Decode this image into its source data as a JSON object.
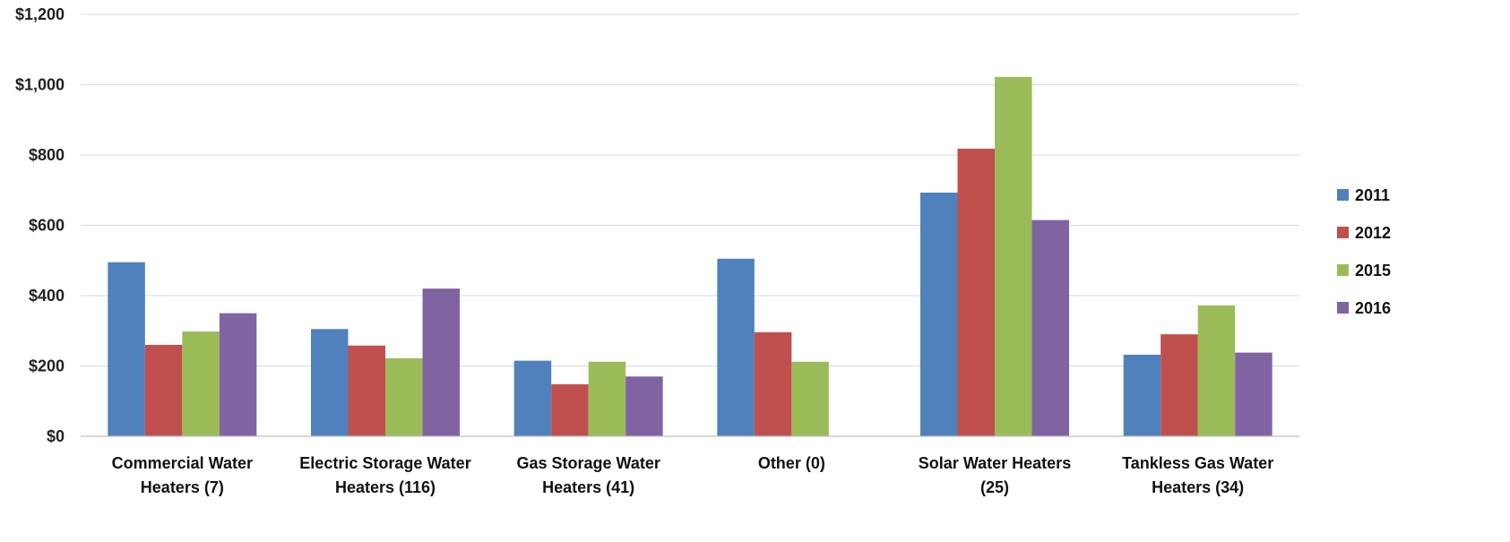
{
  "chart_data": {
    "type": "bar",
    "categories": [
      [
        "Commercial Water",
        "Heaters (7)"
      ],
      [
        "Electric Storage Water",
        "Heaters (116)"
      ],
      [
        "Gas Storage Water",
        "Heaters (41)"
      ],
      [
        "Other (0)"
      ],
      [
        "Solar Water Heaters",
        "(25)"
      ],
      [
        "Tankless Gas Water",
        "Heaters (34)"
      ]
    ],
    "series": [
      {
        "name": "2011",
        "color": "#4f81bd",
        "values": [
          495,
          305,
          215,
          505,
          693,
          232
        ]
      },
      {
        "name": "2012",
        "color": "#c0504d",
        "values": [
          260,
          258,
          148,
          296,
          818,
          290
        ]
      },
      {
        "name": "2015",
        "color": "#9bbb59",
        "values": [
          298,
          222,
          212,
          212,
          1022,
          372
        ]
      },
      {
        "name": "2016",
        "color": "#8064a2",
        "values": [
          350,
          420,
          170,
          null,
          615,
          238
        ]
      }
    ],
    "ylim": [
      0,
      1200
    ],
    "yticks": [
      0,
      200,
      400,
      600,
      800,
      1000,
      1200
    ],
    "ytick_labels": [
      "$0",
      "$200",
      "$400",
      "$600",
      "$800",
      "$1,000",
      "$1,200"
    ],
    "title": "",
    "xlabel": "",
    "ylabel": "",
    "grid": true,
    "legend_position": "right"
  }
}
